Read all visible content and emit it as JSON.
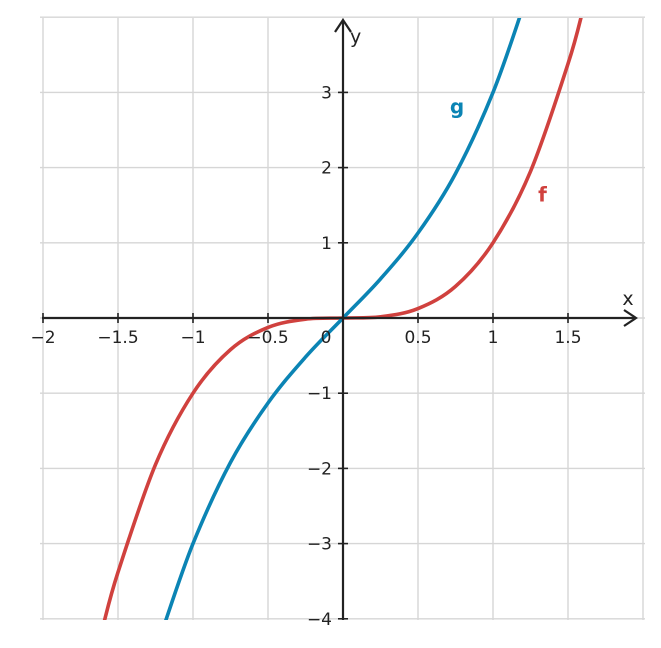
{
  "chart_data": {
    "type": "line",
    "title": "",
    "xlabel": "x",
    "ylabel": "y",
    "xlim": [
      -2,
      2
    ],
    "ylim": [
      -4,
      4
    ],
    "grid": true,
    "x_ticks": [
      -2,
      -1.5,
      -1,
      -0.5,
      0,
      0.5,
      1,
      1.5
    ],
    "x_tick_labels": [
      "−2",
      "−1.5",
      "−1",
      "−0.5",
      "0",
      "0.5",
      "1",
      "1.5"
    ],
    "y_ticks": [
      -4,
      -3,
      -2,
      -1,
      1,
      2,
      3
    ],
    "y_tick_labels": [
      "−4",
      "−3",
      "−2",
      "−1",
      "1",
      "2",
      "3"
    ],
    "series": [
      {
        "name": "f",
        "color": "#d0413e",
        "x": [
          -1.6,
          -1.5,
          -1.25,
          -1,
          -0.75,
          -0.5,
          -0.25,
          0,
          0.25,
          0.5,
          0.75,
          1,
          1.25,
          1.5,
          1.6
        ],
        "y": [
          -4.1,
          -3.38,
          -1.95,
          -1,
          -0.42,
          -0.125,
          -0.016,
          0,
          0.016,
          0.125,
          0.42,
          1,
          1.95,
          3.38,
          4.1
        ]
      },
      {
        "name": "g",
        "color": "#0b84b4",
        "x": [
          -1.2,
          -1,
          -0.75,
          -0.5,
          -0.25,
          0,
          0.25,
          0.5,
          0.75,
          1,
          1.2
        ],
        "y": [
          -4.13,
          -3,
          -1.92,
          -1.13,
          -0.52,
          0,
          0.52,
          1.13,
          1.92,
          3,
          4.13
        ]
      }
    ]
  }
}
